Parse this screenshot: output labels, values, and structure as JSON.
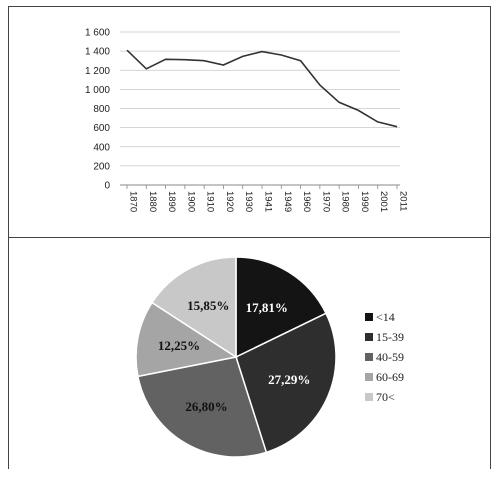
{
  "chart_data": [
    {
      "type": "line",
      "x": [
        "1870",
        "1880",
        "1890",
        "1900",
        "1910",
        "1920",
        "1930",
        "1941",
        "1949",
        "1960",
        "1970",
        "1980",
        "1990",
        "2001",
        "2011"
      ],
      "series": [
        {
          "values": [
            1410,
            1215,
            1315,
            1310,
            1300,
            1255,
            1345,
            1395,
            1360,
            1300,
            1045,
            865,
            780,
            660,
            610
          ]
        }
      ],
      "ylim": [
        0,
        1600
      ],
      "yticks": [
        "0",
        "200",
        "400",
        "600",
        "800",
        "1 000",
        "1 200",
        "1 400",
        "1 600"
      ],
      "grid": true,
      "title": "",
      "xlabel": "",
      "ylabel": ""
    },
    {
      "type": "pie",
      "categories": [
        "<14",
        "15-39",
        "40-59",
        "60-69",
        "70<"
      ],
      "values": [
        17.81,
        27.29,
        26.8,
        12.25,
        15.85
      ],
      "labels": [
        "17,81%",
        "27,29%",
        "26,80%",
        "12,25%",
        "15,85%"
      ],
      "colors": [
        "#141414",
        "#2e2e2e",
        "#626262",
        "#a5a5a5",
        "#c8c8c8"
      ],
      "label_colors": [
        "#ffffff",
        "#ffffff",
        "#111111",
        "#111111",
        "#111111"
      ],
      "legend_position": "right"
    }
  ]
}
